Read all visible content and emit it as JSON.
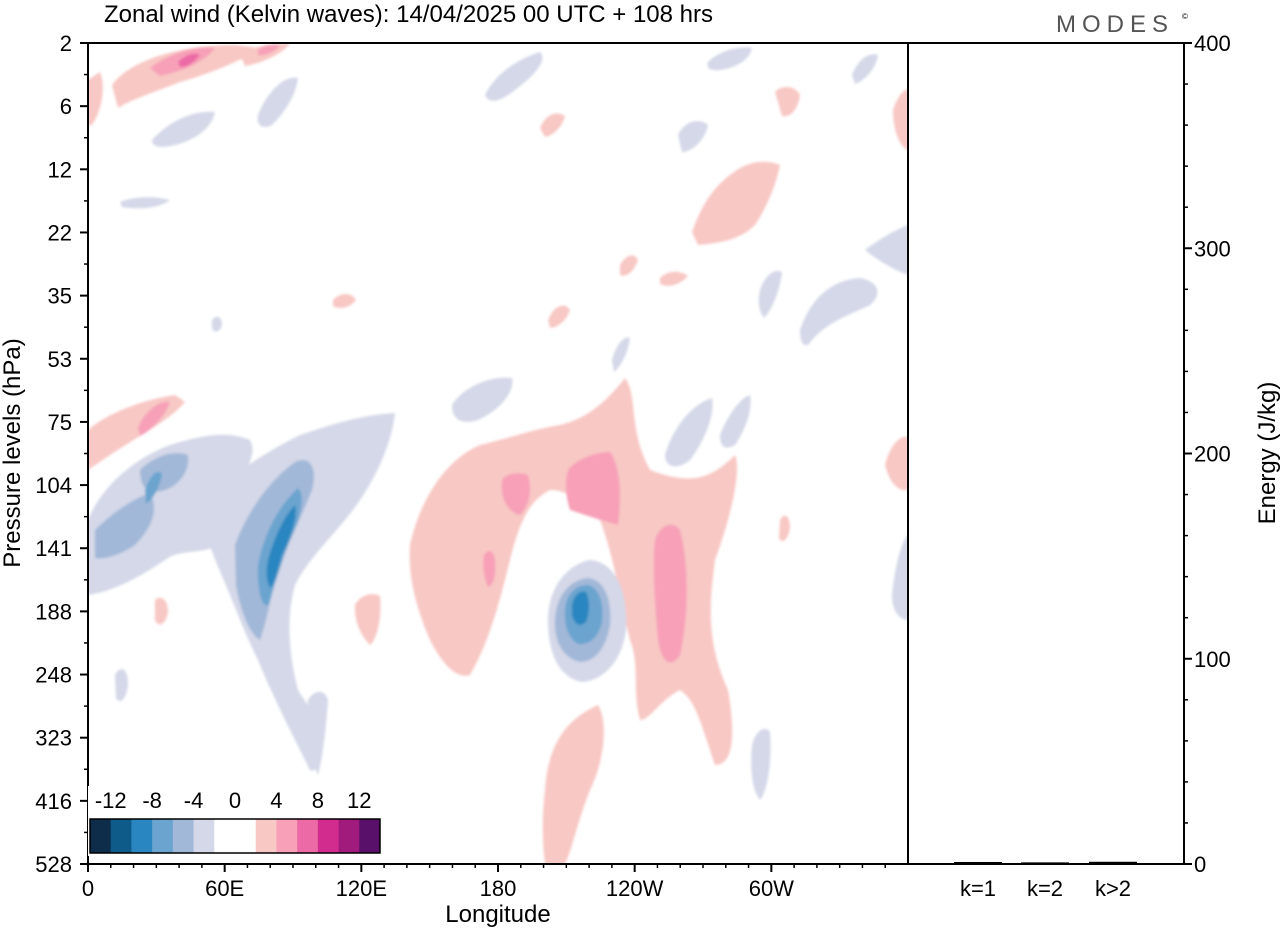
{
  "chart_data": [
    {
      "type": "heatmap",
      "title": "Zonal wind (Kelvin waves):  14/04/2025  00 UTC  + 108 hrs",
      "xlabel": "Longitude",
      "ylabel": "Pressure levels (hPa)",
      "x_ticks": [
        "0",
        "60E",
        "120E",
        "180",
        "120W",
        "60W"
      ],
      "y_ticks": [
        "2",
        "6",
        "12",
        "22",
        "35",
        "53",
        "75",
        "104",
        "141",
        "188",
        "248",
        "323",
        "416",
        "528"
      ],
      "xlim": [
        0,
        360
      ],
      "colorbar": {
        "labels": [
          "-12",
          "-8",
          "-4",
          "0",
          "4",
          "8",
          "12"
        ],
        "colors": [
          "#0d2d4a",
          "#0e5b8a",
          "#2a86c0",
          "#6aa4cf",
          "#a2b8d8",
          "#d4d8e8",
          "#ffffff",
          "#ffffff",
          "#f8c8c4",
          "#f7a0b8",
          "#ec6aa6",
          "#d22d8e",
          "#a11b7d",
          "#58106a"
        ]
      },
      "regions": [
        {
          "sign": "positive",
          "level": 4,
          "x": 40,
          "y": 2.5
        },
        {
          "sign": "positive",
          "level": 8,
          "x": 42,
          "y": 3
        },
        {
          "sign": "positive",
          "level": 4,
          "x": 80,
          "y": 2.2
        },
        {
          "sign": "positive",
          "level": 4,
          "x": 22,
          "y": 80
        },
        {
          "sign": "negative",
          "level": -4,
          "x": 70,
          "y": 130
        },
        {
          "sign": "negative",
          "level": -8,
          "x": 83,
          "y": 135
        },
        {
          "sign": "negative",
          "level": -4,
          "x": 20,
          "y": 125
        },
        {
          "sign": "positive",
          "level": 4,
          "x": 175,
          "y": 140
        },
        {
          "sign": "positive",
          "level": 4,
          "x": 238,
          "y": 170
        },
        {
          "sign": "positive",
          "level": 8,
          "x": 225,
          "y": 105
        },
        {
          "sign": "negative",
          "level": -8,
          "x": 217,
          "y": 185
        },
        {
          "sign": "positive",
          "level": 4,
          "x": 212,
          "y": 400
        },
        {
          "sign": "positive",
          "level": 4,
          "x": 285,
          "y": 18
        },
        {
          "sign": "negative",
          "level": -4,
          "x": 320,
          "y": 40
        }
      ]
    },
    {
      "type": "bar",
      "ylabel": "Energy (J/kg)",
      "categories": [
        "k=1",
        "k=2",
        "k>2"
      ],
      "values": [
        0.5,
        0.3,
        0.6
      ],
      "ylim": [
        0,
        400
      ],
      "y_ticks": [
        "0",
        "100",
        "200",
        "300",
        "400"
      ]
    }
  ],
  "brand": {
    "text": "MODES",
    "mark": "©"
  }
}
